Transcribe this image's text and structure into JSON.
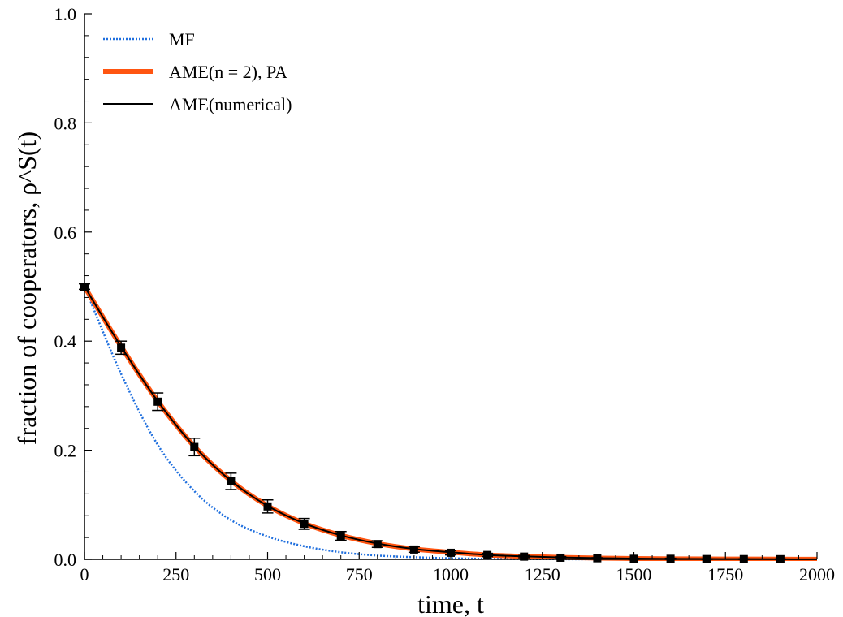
{
  "chart_data": {
    "type": "line",
    "xlabel": "time, t",
    "ylabel": "fraction of cooperators, ρ^S(t)",
    "xlim": [
      0,
      2000
    ],
    "ylim": [
      0,
      1.0
    ],
    "x_ticks": [
      "0",
      "250",
      "500",
      "750",
      "1000",
      "1250",
      "1500",
      "1750",
      "2000"
    ],
    "y_ticks": [
      "0.0",
      "0.2",
      "0.4",
      "0.6",
      "0.8",
      "1.0"
    ],
    "grid": false,
    "legend_position": "top-left",
    "series": [
      {
        "name": "MF",
        "style": "dotted",
        "color": "#1f6fde",
        "x": [
          0,
          100,
          200,
          300,
          400,
          500,
          600,
          700,
          800,
          900,
          1000,
          1100,
          1200,
          1300,
          1400,
          1600,
          1800,
          2000
        ],
        "y": [
          0.5,
          0.34,
          0.21,
          0.125,
          0.072,
          0.042,
          0.024,
          0.013,
          0.007,
          0.004,
          0.002,
          0.001,
          0.0005,
          0.0003,
          0.0002,
          0.0001,
          0.0,
          0.0
        ]
      },
      {
        "name": "AME(n = 2), PA",
        "style": "solid-thick",
        "color": "#ff5511",
        "x": [
          0,
          100,
          200,
          300,
          400,
          500,
          600,
          700,
          800,
          900,
          1000,
          1100,
          1200,
          1300,
          1400,
          1500,
          1600,
          1700,
          1800,
          1900,
          2000
        ],
        "y": [
          0.5,
          0.39,
          0.29,
          0.207,
          0.144,
          0.098,
          0.066,
          0.044,
          0.029,
          0.019,
          0.013,
          0.008,
          0.0055,
          0.0035,
          0.0023,
          0.0015,
          0.001,
          0.0007,
          0.0005,
          0.0003,
          0.0002
        ]
      },
      {
        "name": "AME(numerical)",
        "style": "solid",
        "color": "#000000",
        "x": [
          0,
          100,
          200,
          300,
          400,
          500,
          600,
          700,
          800,
          900,
          1000,
          1100,
          1200,
          1300,
          1400,
          1500,
          1600,
          1700,
          1800,
          1900,
          2000
        ],
        "y": [
          0.5,
          0.39,
          0.29,
          0.207,
          0.144,
          0.098,
          0.066,
          0.044,
          0.029,
          0.019,
          0.013,
          0.008,
          0.0055,
          0.0035,
          0.0023,
          0.0015,
          0.001,
          0.0007,
          0.0005,
          0.0003,
          0.0002
        ]
      },
      {
        "name": "",
        "style": "markers-errorbars",
        "color": "#000000",
        "x": [
          0,
          100,
          200,
          300,
          400,
          500,
          600,
          700,
          800,
          900,
          1000,
          1100,
          1200,
          1300,
          1400,
          1500,
          1600,
          1700,
          1800,
          1900
        ],
        "y": [
          0.5,
          0.388,
          0.289,
          0.206,
          0.143,
          0.097,
          0.065,
          0.043,
          0.028,
          0.018,
          0.012,
          0.008,
          0.005,
          0.003,
          0.002,
          0.001,
          0.001,
          0.0005,
          0.0004,
          0.0003
        ],
        "err": [
          0.005,
          0.012,
          0.016,
          0.016,
          0.015,
          0.012,
          0.01,
          0.008,
          0.006,
          0.005,
          0.004,
          0.003,
          0.002,
          0.002,
          0.001,
          0.001,
          0.001,
          0.0005,
          0.0005,
          0.0004
        ]
      }
    ]
  }
}
